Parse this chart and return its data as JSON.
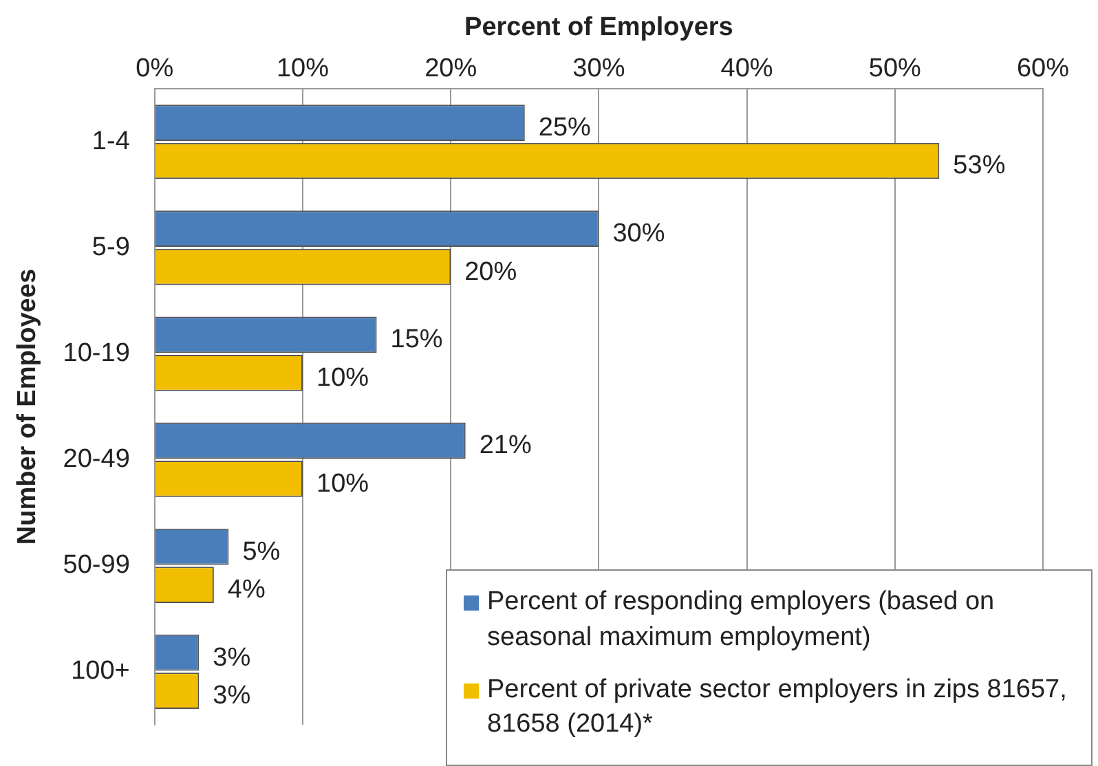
{
  "chart_data": {
    "type": "bar",
    "orientation": "horizontal",
    "xlabel": "Percent of Employers",
    "ylabel": "Number of Employees",
    "categories": [
      "1-4",
      "5-9",
      "10-19",
      "20-49",
      "50-99",
      "100+"
    ],
    "series": [
      {
        "name": "Percent of responding employers (based on seasonal maximum employment)",
        "color": "#4a7ebb",
        "values": [
          25,
          30,
          15,
          21,
          5,
          3
        ],
        "value_labels": [
          "25%",
          "30%",
          "15%",
          "21%",
          "5%",
          "3%"
        ]
      },
      {
        "name": "Percent of private sector employers in zips 81657, 81658 (2014)*",
        "color": "#f2bf00",
        "values": [
          53,
          20,
          10,
          10,
          4,
          3
        ],
        "value_labels": [
          "53%",
          "20%",
          "10%",
          "10%",
          "4%",
          "3%"
        ]
      }
    ],
    "xlim": [
      0,
      60
    ],
    "xticks": [
      {
        "value": 0,
        "label": "0%"
      },
      {
        "value": 10,
        "label": "10%"
      },
      {
        "value": 20,
        "label": "20%"
      },
      {
        "value": 30,
        "label": "30%"
      },
      {
        "value": 40,
        "label": "40%"
      },
      {
        "value": 50,
        "label": "50%"
      },
      {
        "value": 60,
        "label": "60%"
      }
    ],
    "grid": "x",
    "legend": "bottom right"
  }
}
